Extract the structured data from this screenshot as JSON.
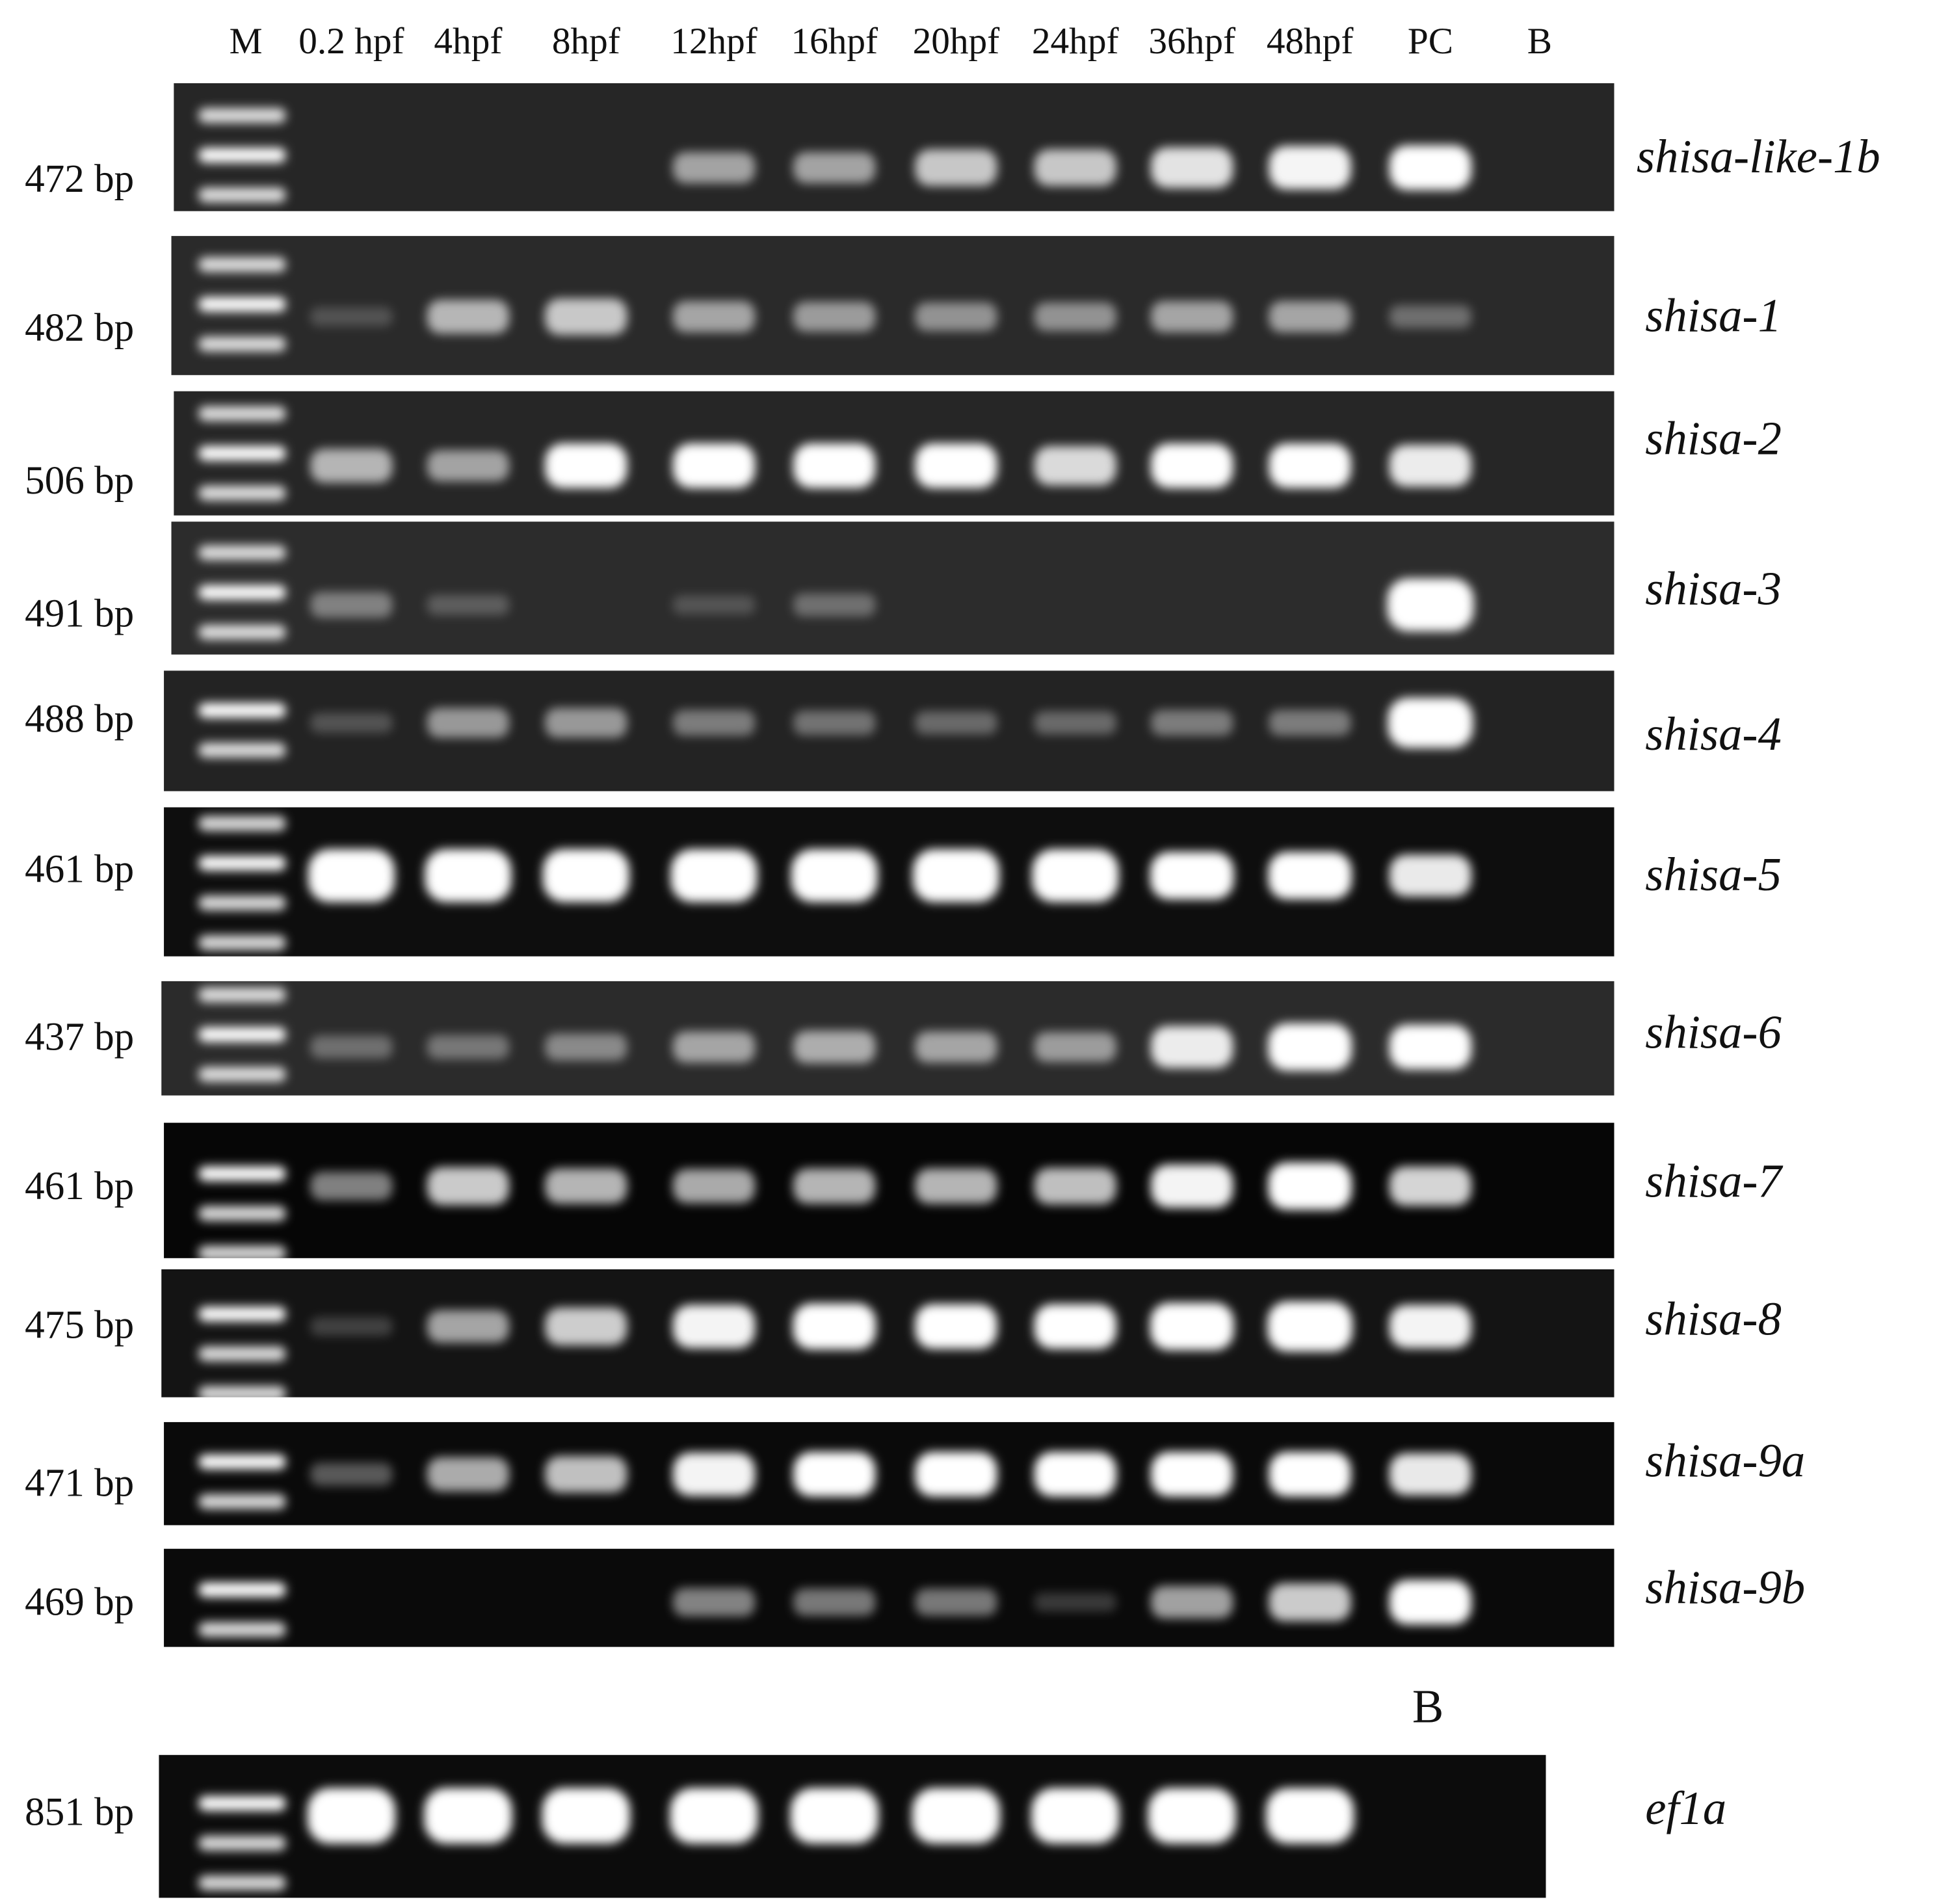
{
  "lanes": [
    "M",
    "0.2 hpf",
    "4hpf",
    "8hpf",
    "12hpf",
    "16hpf",
    "20hpf",
    "24hpf",
    "36hpf",
    "48hpf",
    "PC",
    "B"
  ],
  "panels": [
    {
      "size": "472 bp",
      "gene": "shisa-like-1b"
    },
    {
      "size": "482 bp",
      "gene": "shisa-1"
    },
    {
      "size": "506 bp",
      "gene": "shisa-2"
    },
    {
      "size": "491 bp",
      "gene": "shisa-3"
    },
    {
      "size": "488 bp",
      "gene": "shisa-4"
    },
    {
      "size": "461 bp",
      "gene": "shisa-5"
    },
    {
      "size": "437 bp",
      "gene": "shisa-6"
    },
    {
      "size": "461 bp",
      "gene": "shisa-7"
    },
    {
      "size": "475 bp",
      "gene": "shisa-8"
    },
    {
      "size": "471 bp",
      "gene": "shisa-9a"
    },
    {
      "size": "469 bp",
      "gene": "shisa-9b"
    },
    {
      "size": "851 bp",
      "gene": "ef1a"
    }
  ],
  "ef1a_blank_label": "B"
}
